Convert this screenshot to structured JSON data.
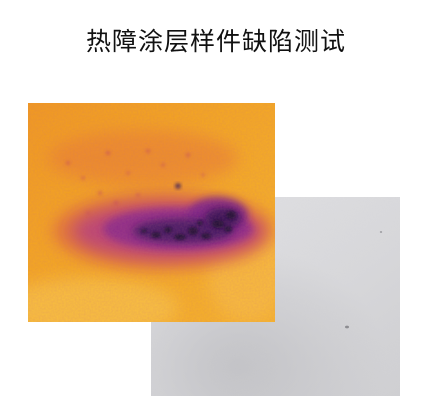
{
  "figure": {
    "title": "热障涂层样件缺陷测试",
    "thermal_image": {
      "description_icon": "thermal-image",
      "colors": {
        "background_hot": "#f4a21c",
        "mid": "#e86a3a",
        "cool": "#9a2a8a",
        "defect_core": "#1a0c3a"
      }
    },
    "photo_image": {
      "description_icon": "specimen-photo",
      "colors": {
        "surface": "#d9d9dc",
        "surface_dark": "#c6c6ca"
      }
    }
  }
}
